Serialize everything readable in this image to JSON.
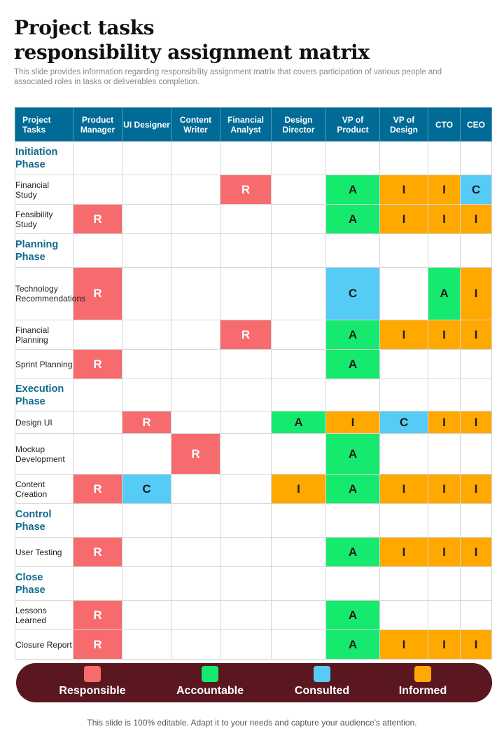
{
  "title": {
    "line1": "Project tasks",
    "line2": "responsibility assignment matrix"
  },
  "subtitle": "This slide provides information regarding responsibility assignment matrix that covers participation of various people and associated roles in tasks or deliverables completion.",
  "matrix": {
    "headers": [
      "Project Tasks",
      "Product Manager",
      "UI Designer",
      "Content Writer",
      "Financial Analyst",
      "Design Director",
      "VP of Product",
      "VP of Design",
      "CTO",
      "CEO"
    ],
    "rows": [
      {
        "type": "phase",
        "label": "Initiation Phase",
        "cells": [
          "",
          "",
          "",
          "",
          "",
          "",
          "",
          "",
          ""
        ]
      },
      {
        "type": "task",
        "label": "Financial Study",
        "cells": [
          "",
          "",
          "",
          "R",
          "",
          "A",
          "I",
          "I",
          "C"
        ]
      },
      {
        "type": "task",
        "label": "Feasibility Study",
        "cells": [
          "R",
          "",
          "",
          "",
          "",
          "A",
          "I",
          "I",
          "I"
        ]
      },
      {
        "type": "phase",
        "label": "Planning Phase",
        "cells": [
          "",
          "",
          "",
          "",
          "",
          "",
          "",
          "",
          ""
        ]
      },
      {
        "type": "task",
        "label": "Technology Recommendations",
        "cells": [
          "R",
          "",
          "",
          "",
          "",
          "C",
          "",
          "A",
          "I"
        ]
      },
      {
        "type": "task",
        "label": "Financial Planning",
        "cells": [
          "",
          "",
          "",
          "R",
          "",
          "A",
          "I",
          "I",
          "I"
        ]
      },
      {
        "type": "task",
        "label": "Sprint Planning",
        "cells": [
          "R",
          "",
          "",
          "",
          "",
          "A",
          "",
          "",
          ""
        ]
      },
      {
        "type": "phase",
        "label": "Execution Phase",
        "cells": [
          "",
          "",
          "",
          "",
          "",
          "",
          "",
          "",
          ""
        ]
      },
      {
        "type": "task",
        "label": "Design UI",
        "cells": [
          "",
          "R",
          "",
          "",
          "A",
          "I",
          "C",
          "I",
          "I"
        ]
      },
      {
        "type": "task",
        "label": "Mockup Development",
        "cells": [
          "",
          "",
          "R",
          "",
          "",
          "A",
          "",
          "",
          ""
        ]
      },
      {
        "type": "task",
        "label": "Content Creation",
        "cells": [
          "R",
          "C",
          "",
          "",
          "I",
          "A",
          "I",
          "I",
          "I"
        ]
      },
      {
        "type": "phase",
        "label": "Control Phase",
        "cells": [
          "",
          "",
          "",
          "",
          "",
          "",
          "",
          "",
          ""
        ]
      },
      {
        "type": "task",
        "label": "User Testing",
        "cells": [
          "R",
          "",
          "",
          "",
          "",
          "A",
          "I",
          "I",
          "I"
        ]
      },
      {
        "type": "phase",
        "label": "Close Phase",
        "cells": [
          "",
          "",
          "",
          "",
          "",
          "",
          "",
          "",
          ""
        ]
      },
      {
        "type": "task",
        "label": "Lessons Learned",
        "cells": [
          "R",
          "",
          "",
          "",
          "",
          "A",
          "",
          "",
          ""
        ]
      },
      {
        "type": "task",
        "label": "Closure Report",
        "cells": [
          "R",
          "",
          "",
          "",
          "",
          "A",
          "I",
          "I",
          "I"
        ]
      }
    ]
  },
  "legend": [
    {
      "key": "R",
      "label": "Responsible",
      "color": "#f76b6e"
    },
    {
      "key": "A",
      "label": "Accountable",
      "color": "#16ea6e"
    },
    {
      "key": "C",
      "label": "Consulted",
      "color": "#56cbf6"
    },
    {
      "key": "I",
      "label": "Informed",
      "color": "#ffa900"
    }
  ],
  "footer": "This slide is 100% editable. Adapt it to your needs and capture your audience's attention."
}
